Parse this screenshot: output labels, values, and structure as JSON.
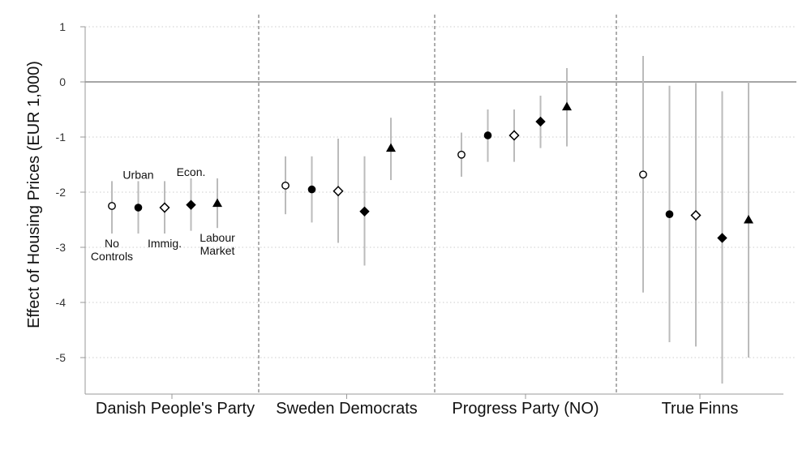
{
  "chart_data": {
    "type": "scatter",
    "ylabel": "Effect of Housing Prices (EUR 1,000)",
    "ylim": [
      -5.6,
      1.1
    ],
    "yticks": [
      1,
      0,
      -1,
      -2,
      -3,
      -4,
      -5
    ],
    "grid": true,
    "reference_line": 0,
    "groups": [
      "Danish People's Party",
      "Sweden Democrats",
      "Progress Party (NO)",
      "True Finns"
    ],
    "specifications": [
      {
        "marker": "hollow-circle"
      },
      {
        "marker": "filled-circle"
      },
      {
        "marker": "hollow-diamond"
      },
      {
        "marker": "filled-diamond"
      },
      {
        "marker": "filled-triangle"
      }
    ],
    "estimates": [
      [
        {
          "y": -2.25,
          "lo": -2.75,
          "hi": -1.8
        },
        {
          "y": -2.28,
          "lo": -2.75,
          "hi": -1.8
        },
        {
          "y": -2.28,
          "lo": -2.75,
          "hi": -1.8
        },
        {
          "y": -2.23,
          "lo": -2.7,
          "hi": -1.75
        },
        {
          "y": -2.2,
          "lo": -2.65,
          "hi": -1.75
        }
      ],
      [
        {
          "y": -1.88,
          "lo": -2.4,
          "hi": -1.35
        },
        {
          "y": -1.95,
          "lo": -2.55,
          "hi": -1.35
        },
        {
          "y": -1.98,
          "lo": -2.92,
          "hi": -1.03
        },
        {
          "y": -2.35,
          "lo": -3.33,
          "hi": -1.35
        },
        {
          "y": -1.2,
          "lo": -1.78,
          "hi": -0.65
        }
      ],
      [
        {
          "y": -1.32,
          "lo": -1.72,
          "hi": -0.92
        },
        {
          "y": -0.97,
          "lo": -1.45,
          "hi": -0.5
        },
        {
          "y": -0.97,
          "lo": -1.45,
          "hi": -0.5
        },
        {
          "y": -0.72,
          "lo": -1.2,
          "hi": -0.25
        },
        {
          "y": -0.45,
          "lo": -1.17,
          "hi": 0.25
        }
      ],
      [
        {
          "y": -1.68,
          "lo": -3.82,
          "hi": 0.47
        },
        {
          "y": -2.4,
          "lo": -4.72,
          "hi": -0.07
        },
        {
          "y": -2.42,
          "lo": -4.8,
          "hi": -0.02
        },
        {
          "y": -2.83,
          "lo": -5.47,
          "hi": -0.17
        },
        {
          "y": -2.5,
          "lo": -5.0,
          "hi": 0.0
        }
      ]
    ],
    "annotations": [
      {
        "text": "No",
        "spec": 0,
        "where": "below"
      },
      {
        "text": "Controls",
        "spec": 0,
        "where": "below-2"
      },
      {
        "text": "Urban",
        "spec": 1,
        "where": "above"
      },
      {
        "text": "Immig.",
        "spec": 2,
        "where": "below"
      },
      {
        "text": "Econ.",
        "spec": 3,
        "where": "above"
      },
      {
        "text": "Labour",
        "spec": 4,
        "where": "below"
      },
      {
        "text": "Market",
        "spec": 4,
        "where": "below-2"
      }
    ],
    "colors": {
      "ci": "#bbbbbb",
      "marker": "#000000",
      "grid": "#cccccc",
      "zero": "#888888",
      "separator": "#777777",
      "axis": "#999999"
    }
  }
}
